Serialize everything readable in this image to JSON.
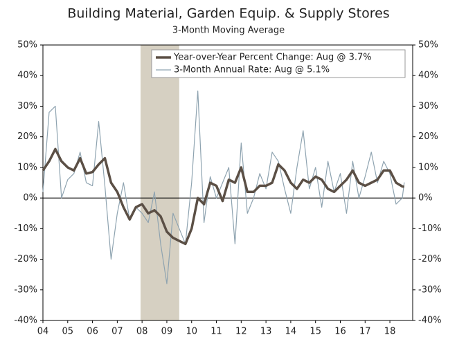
{
  "chart_data": {
    "type": "line",
    "title": "Building Material, Garden Equip. & Supply Stores",
    "subtitle": "3-Month Moving Average",
    "x": [
      2004.0,
      2004.25,
      2004.5,
      2004.75,
      2005.0,
      2005.25,
      2005.5,
      2005.75,
      2006.0,
      2006.25,
      2006.5,
      2006.75,
      2007.0,
      2007.25,
      2007.5,
      2007.75,
      2008.0,
      2008.25,
      2008.5,
      2008.75,
      2009.0,
      2009.25,
      2009.5,
      2009.75,
      2010.0,
      2010.25,
      2010.5,
      2010.75,
      2011.0,
      2011.25,
      2011.5,
      2011.75,
      2012.0,
      2012.25,
      2012.5,
      2012.75,
      2013.0,
      2013.25,
      2013.5,
      2013.75,
      2014.0,
      2014.25,
      2014.5,
      2014.75,
      2015.0,
      2015.25,
      2015.5,
      2015.75,
      2016.0,
      2016.25,
      2016.5,
      2016.75,
      2017.0,
      2017.25,
      2017.5,
      2017.75,
      2018.0,
      2018.25,
      2018.5,
      2018.58
    ],
    "series": [
      {
        "name": "Year-over-Year Percent Change: Aug @ 3.7%",
        "color": "#5b4f45",
        "width": 3.5,
        "values": [
          9,
          12,
          16,
          12,
          10,
          9,
          13,
          8,
          8.5,
          11,
          13,
          5,
          2,
          -3,
          -7,
          -3,
          -2,
          -5,
          -4,
          -6,
          -11,
          -13,
          -14,
          -15,
          -10,
          0,
          -2,
          5,
          4,
          -1,
          6,
          5,
          10,
          2,
          2,
          4,
          4,
          5,
          11,
          9,
          5,
          3,
          6,
          5,
          7,
          6,
          3,
          2,
          4,
          6,
          9,
          5,
          4,
          5,
          6,
          9,
          9,
          5,
          3.8,
          3.7
        ]
      },
      {
        "name": "3-Month Annual Rate: Aug @ 5.1%",
        "color": "#8ea3b0",
        "width": 1.2,
        "values": [
          2,
          28,
          30,
          0,
          6,
          8,
          15,
          5,
          4,
          25,
          4,
          -20,
          -5,
          5,
          -7,
          -3,
          -5,
          -8,
          2,
          -15,
          -28,
          -5,
          -10,
          -15,
          5,
          35,
          -8,
          7,
          0,
          5,
          10,
          -15,
          18,
          -5,
          0,
          8,
          3,
          15,
          12,
          3,
          -5,
          10,
          22,
          3,
          10,
          -3,
          12,
          2,
          8,
          -5,
          12,
          0,
          7,
          15,
          5,
          12,
          8,
          -2,
          0,
          5.1
        ]
      }
    ],
    "xlim": [
      2004,
      2018.92
    ],
    "xticks": [
      {
        "value": 2004,
        "label": "04"
      },
      {
        "value": 2005,
        "label": "05"
      },
      {
        "value": 2006,
        "label": "06"
      },
      {
        "value": 2007,
        "label": "07"
      },
      {
        "value": 2008,
        "label": "08"
      },
      {
        "value": 2009,
        "label": "09"
      },
      {
        "value": 2010,
        "label": "10"
      },
      {
        "value": 2011,
        "label": "11"
      },
      {
        "value": 2012,
        "label": "12"
      },
      {
        "value": 2013,
        "label": "13"
      },
      {
        "value": 2014,
        "label": "14"
      },
      {
        "value": 2015,
        "label": "15"
      },
      {
        "value": 2016,
        "label": "16"
      },
      {
        "value": 2017,
        "label": "17"
      },
      {
        "value": 2018,
        "label": "18"
      }
    ],
    "ylim": [
      -40,
      50
    ],
    "yticks": [
      {
        "value": -40,
        "label": "-40%"
      },
      {
        "value": -30,
        "label": "-30%"
      },
      {
        "value": -20,
        "label": "-20%"
      },
      {
        "value": -10,
        "label": "-10%"
      },
      {
        "value": 0,
        "label": "0%"
      },
      {
        "value": 10,
        "label": "10%"
      },
      {
        "value": 20,
        "label": "20%"
      },
      {
        "value": 30,
        "label": "30%"
      },
      {
        "value": 40,
        "label": "40%"
      },
      {
        "value": 50,
        "label": "50%"
      }
    ],
    "y2lim": [
      -40,
      50
    ],
    "y2ticks": [
      {
        "value": -40,
        "label": "-40%"
      },
      {
        "value": -30,
        "label": "-30%"
      },
      {
        "value": -20,
        "label": "-20%"
      },
      {
        "value": -10,
        "label": "-10%"
      },
      {
        "value": 0,
        "label": "0%"
      },
      {
        "value": 10,
        "label": "10%"
      },
      {
        "value": 20,
        "label": "20%"
      },
      {
        "value": 30,
        "label": "30%"
      },
      {
        "value": 40,
        "label": "40%"
      },
      {
        "value": 50,
        "label": "50%"
      }
    ],
    "shade": [
      2007.94,
      2009.5
    ],
    "shade_color": "#d6d0c2",
    "legend": "top"
  }
}
